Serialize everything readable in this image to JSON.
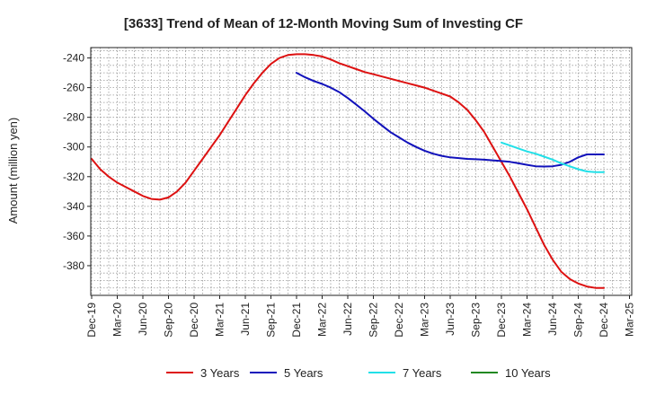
{
  "chart_data": {
    "type": "line",
    "title": "[3633]  Trend of Mean of 12-Month Moving Sum of Investing CF",
    "xlabel": "",
    "ylabel": "Amount (million yen)",
    "ylim": [
      -400,
      -233
    ],
    "yticks": [
      -240,
      -260,
      -280,
      -300,
      -320,
      -340,
      -360,
      -380
    ],
    "xticks": [
      "Dec-19",
      "Mar-20",
      "Jun-20",
      "Sep-20",
      "Dec-20",
      "Mar-21",
      "Jun-21",
      "Sep-21",
      "Dec-21",
      "Mar-22",
      "Jun-22",
      "Sep-22",
      "Dec-22",
      "Mar-23",
      "Jun-23",
      "Sep-23",
      "Dec-23",
      "Mar-24",
      "Jun-24",
      "Sep-24",
      "Dec-24",
      "Mar-25"
    ],
    "grid": true,
    "legend_position": "bottom",
    "series": [
      {
        "name": "3 Years",
        "color": "#dd1111",
        "x": [
          0,
          1,
          2,
          3,
          4,
          5,
          6,
          7,
          8,
          9,
          10,
          11,
          12,
          13,
          14,
          15,
          16,
          17,
          18,
          19,
          20,
          21,
          22,
          23,
          24,
          25,
          26,
          27,
          28,
          29,
          30,
          31,
          32,
          33,
          34,
          35,
          36,
          37,
          38,
          39,
          40,
          41,
          42,
          43,
          44,
          45,
          46,
          47,
          48,
          49,
          50,
          51,
          52,
          53,
          54,
          55,
          56,
          57,
          58,
          59,
          60
        ],
        "values": [
          -308,
          -315,
          -320,
          -324,
          -327,
          -330,
          -333,
          -335,
          -335.5,
          -334,
          -330,
          -324,
          -316,
          -308,
          -300,
          -292,
          -283,
          -274,
          -265,
          -257,
          -250,
          -244,
          -240,
          -238,
          -237.5,
          -237.5,
          -238,
          -239,
          -241,
          -243.5,
          -245.5,
          -247.5,
          -249.5,
          -251,
          -252.5,
          -254,
          -255.5,
          -257,
          -258.5,
          -260,
          -262,
          -264,
          -266,
          -270,
          -275,
          -282,
          -290,
          -300,
          -310,
          -320,
          -331,
          -342,
          -354,
          -366,
          -376,
          -384,
          -389,
          -392,
          -394,
          -395,
          -395
        ]
      },
      {
        "name": "5 Years",
        "color": "#1111bb",
        "x": [
          24,
          25,
          26,
          27,
          28,
          29,
          30,
          31,
          32,
          33,
          34,
          35,
          36,
          37,
          38,
          39,
          40,
          41,
          42,
          43,
          44,
          45,
          46,
          47,
          48,
          49,
          50,
          51,
          52,
          53,
          54,
          55,
          56,
          57,
          58,
          59,
          60
        ],
        "values": [
          -250,
          -253,
          -255.5,
          -257.5,
          -260,
          -263,
          -267,
          -271.5,
          -276,
          -281,
          -285.5,
          -290,
          -293.5,
          -297,
          -300,
          -302.5,
          -304.5,
          -306,
          -307,
          -307.5,
          -308,
          -308.3,
          -308.6,
          -309,
          -309.5,
          -310,
          -311,
          -312,
          -313,
          -313.2,
          -313,
          -312,
          -310,
          -307,
          -305,
          -305,
          -305
        ]
      },
      {
        "name": "7 Years",
        "color": "#22e0e8",
        "x": [
          48,
          49,
          50,
          51,
          52,
          53,
          54,
          55,
          56,
          57,
          58,
          59,
          60
        ],
        "values": [
          -297,
          -299,
          -301,
          -303,
          -304.5,
          -306.5,
          -308.5,
          -311,
          -313,
          -315,
          -316.5,
          -317,
          -317
        ]
      },
      {
        "name": "10 Years",
        "color": "#228822",
        "x": [],
        "values": []
      }
    ]
  }
}
